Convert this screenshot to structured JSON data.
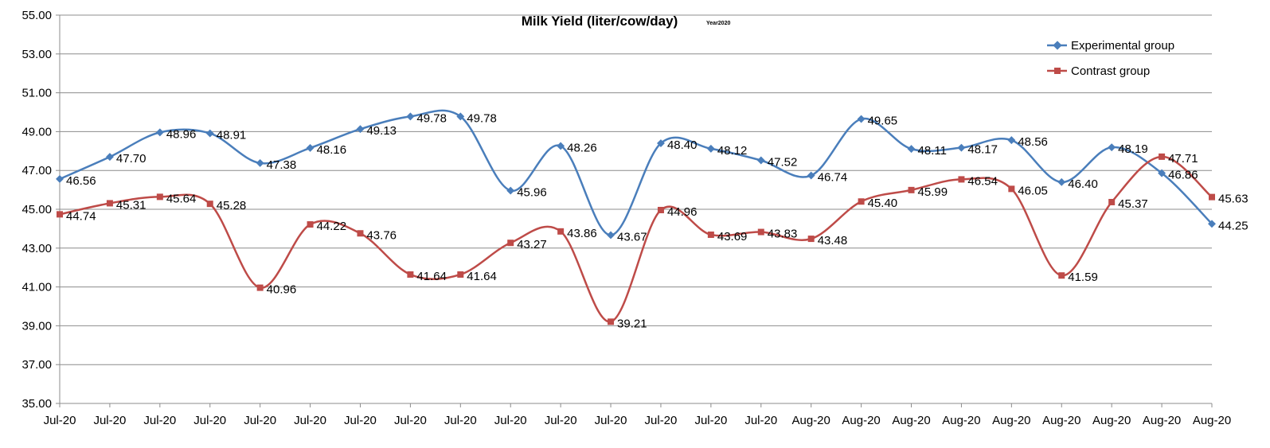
{
  "chart_data": {
    "type": "line",
    "title": "Milk Yield (liter/cow/day)",
    "subtitle": "Year2020",
    "categories": [
      "Jul-20",
      "Jul-20",
      "Jul-20",
      "Jul-20",
      "Jul-20",
      "Jul-20",
      "Jul-20",
      "Jul-20",
      "Jul-20",
      "Jul-20",
      "Jul-20",
      "Jul-20",
      "Jul-20",
      "Jul-20",
      "Jul-20",
      "Aug-20",
      "Aug-20",
      "Aug-20",
      "Aug-20",
      "Aug-20",
      "Aug-20",
      "Aug-20",
      "Aug-20",
      "Aug-20"
    ],
    "ylim": [
      35,
      55
    ],
    "yticks": [
      "35.00",
      "37.00",
      "39.00",
      "41.00",
      "43.00",
      "45.00",
      "47.00",
      "49.00",
      "51.00",
      "53.00",
      "55.00"
    ],
    "grid": true,
    "legend_position": "top-right",
    "series": [
      {
        "name": "Experimental group",
        "color": "#4a7ebb",
        "marker": "diamond",
        "values": [
          46.56,
          47.7,
          48.96,
          48.91,
          47.38,
          48.16,
          49.13,
          49.78,
          49.78,
          45.96,
          48.26,
          43.67,
          48.4,
          48.12,
          47.52,
          46.74,
          49.65,
          48.11,
          48.17,
          48.56,
          46.4,
          48.19,
          46.86,
          44.25
        ],
        "labels": [
          "46.56",
          "47.70",
          "48.96",
          "48.91",
          "47.38",
          "48.16",
          "49.13",
          "49.78",
          "49.78",
          "45.96",
          "48.26",
          "43.67",
          "48.40",
          "48.12",
          "47.52",
          "46.74",
          "49.65",
          "48.11",
          "48.17",
          "48.56",
          "46.40",
          "48.19",
          "46.86",
          "44.25"
        ]
      },
      {
        "name": "Contrast group",
        "color": "#be4b48",
        "marker": "square",
        "values": [
          44.74,
          45.31,
          45.64,
          45.28,
          40.96,
          44.22,
          43.76,
          41.64,
          41.64,
          43.27,
          43.86,
          39.21,
          44.96,
          43.69,
          43.83,
          43.48,
          45.4,
          45.99,
          46.54,
          46.05,
          41.59,
          45.37,
          47.71,
          45.63
        ],
        "labels": [
          "44.74",
          "45.31",
          "45.64",
          "45.28",
          "40.96",
          "44.22",
          "43.76",
          "41.64",
          "41.64",
          "43.27",
          "43.86",
          "39.21",
          "44.96",
          "43.69",
          "43.83",
          "43.48",
          "45.40",
          "45.99",
          "46.54",
          "46.05",
          "41.59",
          "45.37",
          "47.71",
          "45.63"
        ]
      }
    ]
  }
}
